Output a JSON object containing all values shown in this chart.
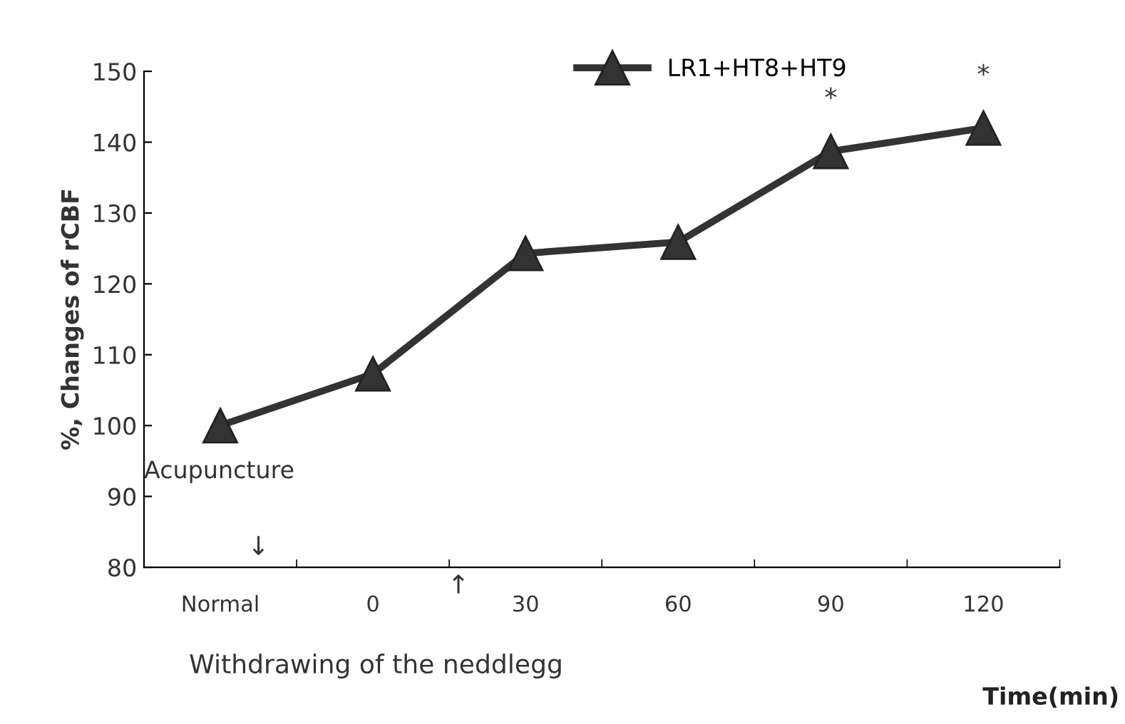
{
  "chart_data": {
    "type": "line",
    "ylabel": "%, Changes of rCBF",
    "xlabel": "Time(min)",
    "categories": [
      "Normal",
      "0",
      "30",
      "60",
      "90",
      "120"
    ],
    "series": [
      {
        "name": "LR1+HT8+HT9",
        "color": "#333333",
        "values": [
          100,
          107.3,
          124.3,
          125.9,
          138.7,
          142
        ]
      }
    ],
    "ylim": [
      80,
      150
    ],
    "yticks": [
      80,
      90,
      100,
      110,
      120,
      130,
      140,
      150
    ],
    "marker": "triangle",
    "line_style": "solid",
    "grid": false,
    "legend": "top",
    "annotations": [
      "Acupuncture",
      "↓",
      "↑",
      "Withdrawing of the neddlegg",
      {
        "text": "*",
        "x": "90",
        "y": 138.7
      },
      {
        "text": "*",
        "x": "120",
        "y": 142
      }
    ]
  }
}
